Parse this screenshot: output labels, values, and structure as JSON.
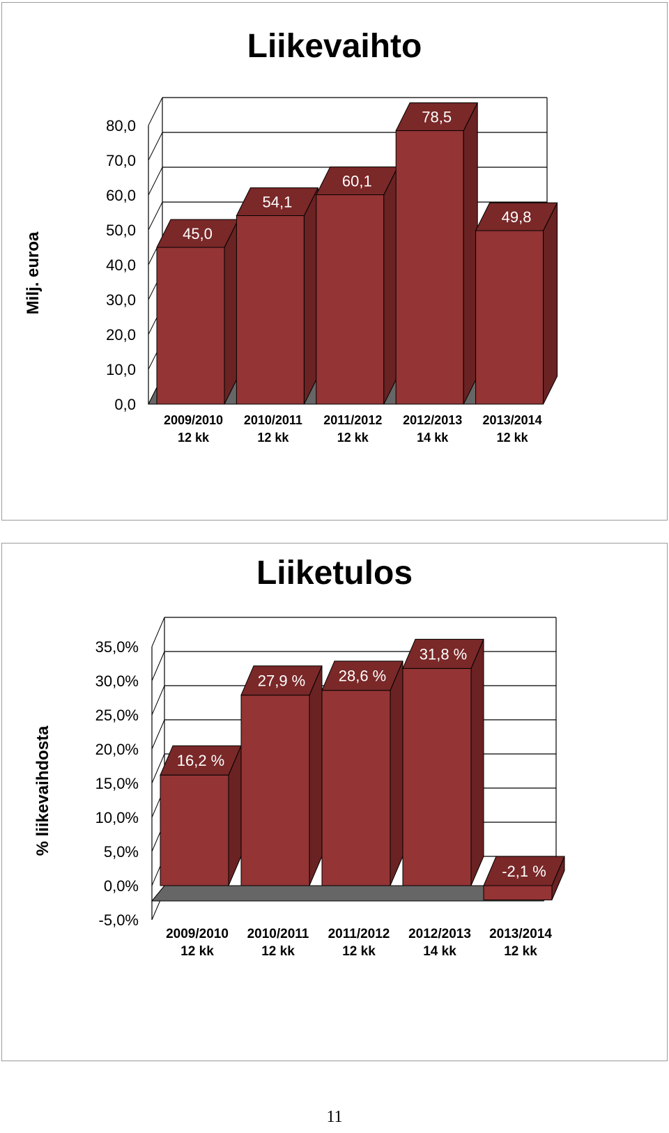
{
  "chart_data": [
    {
      "type": "bar",
      "title": "Liikevaihto",
      "ylabel": "Milj. euroa",
      "categories": [
        "2009/2010 12 kk",
        "2010/2011 12 kk",
        "2011/2012 12 kk",
        "2012/2013 14 kk",
        "2013/2014 12 kk"
      ],
      "category_lines": [
        [
          "2009/2010",
          "12 kk"
        ],
        [
          "2010/2011",
          "12 kk"
        ],
        [
          "2011/2012",
          "12 kk"
        ],
        [
          "2012/2013",
          "14 kk"
        ],
        [
          "2013/2014",
          "12 kk"
        ]
      ],
      "values": [
        45.0,
        54.1,
        60.1,
        78.5,
        49.8
      ],
      "data_labels": [
        "45,0",
        "54,1",
        "60,1",
        "78,5",
        "49,8"
      ],
      "ylim": [
        0,
        80
      ],
      "yticks": [
        "0,0",
        "10,0",
        "20,0",
        "30,0",
        "40,0",
        "50,0",
        "60,0",
        "70,0",
        "80,0"
      ],
      "grid": true,
      "style": "3d",
      "colors": {
        "bar_front": "#943434",
        "bar_side": "#6a2222",
        "bar_top": "#7a2828",
        "floor": "#666666"
      }
    },
    {
      "type": "bar",
      "title": "Liiketulos",
      "ylabel": "% liikevaihdosta",
      "categories": [
        "2009/2010 12 kk",
        "2010/2011 12 kk",
        "2011/2012 12 kk",
        "2012/2013 14 kk",
        "2013/2014 12 kk"
      ],
      "category_lines": [
        [
          "2009/2010",
          "12 kk"
        ],
        [
          "2010/2011",
          "12 kk"
        ],
        [
          "2011/2012",
          "12 kk"
        ],
        [
          "2012/2013",
          "14 kk"
        ],
        [
          "2013/2014",
          "12 kk"
        ]
      ],
      "values": [
        16.2,
        27.9,
        28.6,
        31.8,
        -2.1
      ],
      "data_labels": [
        "16,2 %",
        "27,9 %",
        "28,6 %",
        "31,8 %",
        "-2,1 %"
      ],
      "ylim": [
        -5,
        35
      ],
      "yticks": [
        "-5,0%",
        "0,0%",
        "5,0%",
        "10,0%",
        "15,0%",
        "20,0%",
        "25,0%",
        "30,0%",
        "35,0%"
      ],
      "grid": true,
      "style": "3d",
      "colors": {
        "bar_front": "#943434",
        "bar_side": "#6a2222",
        "bar_top": "#7a2828",
        "floor": "#666666"
      }
    }
  ],
  "page_number": "11"
}
